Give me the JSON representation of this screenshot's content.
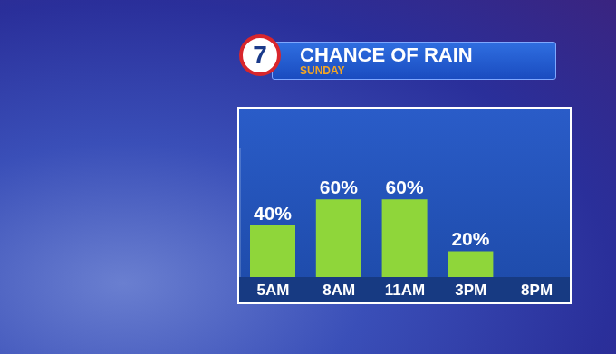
{
  "chart_data": {
    "type": "bar",
    "title": "CHANCE OF RAIN",
    "subtitle": "SUNDAY",
    "annotations": [
      "7"
    ],
    "categories": [
      "5AM",
      "8AM",
      "11AM",
      "3PM",
      "8PM"
    ],
    "values": [
      40,
      60,
      60,
      20,
      null
    ],
    "value_labels": [
      "40%",
      "60%",
      "60%",
      "20%",
      null
    ],
    "data_labels": true,
    "color": "#8fd63a",
    "ylim": [
      0,
      100
    ],
    "tick_labels": "x",
    "grid": false
  }
}
